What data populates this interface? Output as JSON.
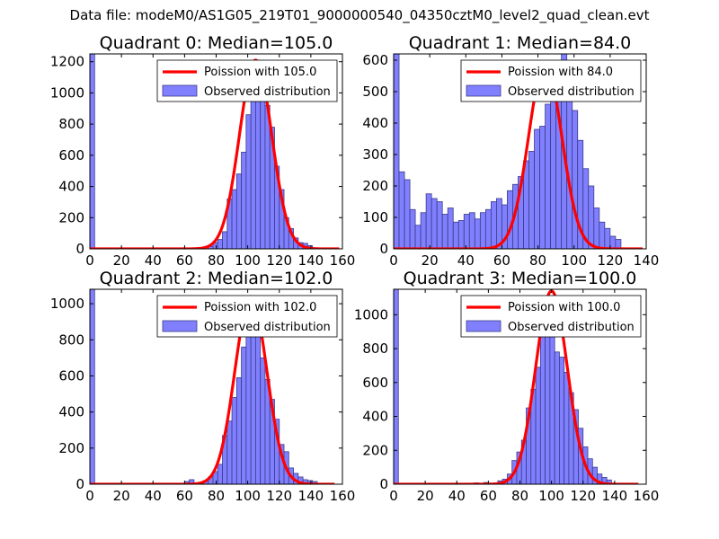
{
  "figure": {
    "suptitle": "Data file: modeM0/AS1G05_219T01_9000000540_04350cztM0_level2_quad_clean.evt"
  },
  "colors": {
    "bar_fill": "#8080ff",
    "bar_edge": "#3a3a8a",
    "curve": "#ff0000"
  },
  "chart_data": [
    {
      "type": "bar",
      "title": "Quadrant 0: Median=105.0",
      "xlim": [
        0,
        160
      ],
      "ylim": [
        0,
        1250
      ],
      "xticks": [
        0,
        20,
        40,
        60,
        80,
        100,
        120,
        140,
        160
      ],
      "yticks": [
        0,
        200,
        400,
        600,
        800,
        1000,
        1200
      ],
      "legend": {
        "placement": "top-right",
        "curve_label": "Poission with 105.0",
        "bar_label": "Observed distribution"
      },
      "bin_width": 3,
      "bins": [
        {
          "x": 0,
          "h": 1250
        },
        {
          "x": 75,
          "h": 15
        },
        {
          "x": 78,
          "h": 40
        },
        {
          "x": 81,
          "h": 60
        },
        {
          "x": 84,
          "h": 110
        },
        {
          "x": 87,
          "h": 320
        },
        {
          "x": 90,
          "h": 380
        },
        {
          "x": 93,
          "h": 480
        },
        {
          "x": 96,
          "h": 620
        },
        {
          "x": 99,
          "h": 860
        },
        {
          "x": 102,
          "h": 1140
        },
        {
          "x": 105,
          "h": 1210
        },
        {
          "x": 108,
          "h": 1060
        },
        {
          "x": 111,
          "h": 920
        },
        {
          "x": 114,
          "h": 780
        },
        {
          "x": 117,
          "h": 530
        },
        {
          "x": 120,
          "h": 380
        },
        {
          "x": 123,
          "h": 200
        },
        {
          "x": 126,
          "h": 130
        },
        {
          "x": 129,
          "h": 70
        },
        {
          "x": 132,
          "h": 40
        },
        {
          "x": 135,
          "h": 35
        },
        {
          "x": 138,
          "h": 20
        }
      ],
      "poisson": {
        "mean": 105.0,
        "peak": 1210,
        "sigma": 10.2,
        "x_range": [
          0,
          158
        ]
      }
    },
    {
      "type": "bar",
      "title": "Quadrant 1: Median=84.0",
      "xlim": [
        0,
        140
      ],
      "ylim": [
        0,
        620
      ],
      "xticks": [
        0,
        20,
        40,
        60,
        80,
        100,
        120,
        140
      ],
      "yticks": [
        0,
        100,
        200,
        300,
        400,
        500,
        600
      ],
      "legend": {
        "placement": "top-right",
        "curve_label": "Poission with 84.0",
        "bar_label": "Observed distribution"
      },
      "bin_width": 3,
      "bins": [
        {
          "x": 0,
          "h": 620
        },
        {
          "x": 3,
          "h": 245
        },
        {
          "x": 6,
          "h": 220
        },
        {
          "x": 9,
          "h": 125
        },
        {
          "x": 12,
          "h": 75
        },
        {
          "x": 15,
          "h": 115
        },
        {
          "x": 18,
          "h": 175
        },
        {
          "x": 21,
          "h": 160
        },
        {
          "x": 24,
          "h": 150
        },
        {
          "x": 27,
          "h": 110
        },
        {
          "x": 30,
          "h": 130
        },
        {
          "x": 33,
          "h": 85
        },
        {
          "x": 36,
          "h": 90
        },
        {
          "x": 39,
          "h": 110
        },
        {
          "x": 42,
          "h": 115
        },
        {
          "x": 45,
          "h": 95
        },
        {
          "x": 48,
          "h": 115
        },
        {
          "x": 51,
          "h": 125
        },
        {
          "x": 54,
          "h": 150
        },
        {
          "x": 57,
          "h": 160
        },
        {
          "x": 60,
          "h": 140
        },
        {
          "x": 63,
          "h": 185
        },
        {
          "x": 66,
          "h": 205
        },
        {
          "x": 69,
          "h": 230
        },
        {
          "x": 72,
          "h": 280
        },
        {
          "x": 75,
          "h": 310
        },
        {
          "x": 78,
          "h": 380
        },
        {
          "x": 81,
          "h": 390
        },
        {
          "x": 84,
          "h": 460
        },
        {
          "x": 87,
          "h": 540
        },
        {
          "x": 90,
          "h": 570
        },
        {
          "x": 93,
          "h": 640
        },
        {
          "x": 96,
          "h": 560
        },
        {
          "x": 99,
          "h": 440
        },
        {
          "x": 102,
          "h": 345
        },
        {
          "x": 105,
          "h": 255
        },
        {
          "x": 108,
          "h": 200
        },
        {
          "x": 111,
          "h": 130
        },
        {
          "x": 114,
          "h": 85
        },
        {
          "x": 117,
          "h": 65
        },
        {
          "x": 120,
          "h": 40
        },
        {
          "x": 123,
          "h": 30
        }
      ],
      "poisson": {
        "mean": 84.0,
        "peak": 590,
        "sigma": 9.2,
        "x_range": [
          0,
          138
        ]
      }
    },
    {
      "type": "bar",
      "title": "Quadrant 2: Median=102.0",
      "xlim": [
        0,
        160
      ],
      "ylim": [
        0,
        1080
      ],
      "xticks": [
        0,
        20,
        40,
        60,
        80,
        100,
        120,
        140,
        160
      ],
      "yticks": [
        0,
        200,
        400,
        600,
        800,
        1000
      ],
      "legend": {
        "placement": "top-right",
        "curve_label": "Poission with 102.0",
        "bar_label": "Observed distribution"
      },
      "bin_width": 3,
      "bins": [
        {
          "x": 0,
          "h": 1080
        },
        {
          "x": 60,
          "h": 15
        },
        {
          "x": 63,
          "h": 25
        },
        {
          "x": 72,
          "h": 20
        },
        {
          "x": 75,
          "h": 40
        },
        {
          "x": 78,
          "h": 70
        },
        {
          "x": 81,
          "h": 110
        },
        {
          "x": 84,
          "h": 270
        },
        {
          "x": 87,
          "h": 350
        },
        {
          "x": 90,
          "h": 480
        },
        {
          "x": 93,
          "h": 590
        },
        {
          "x": 96,
          "h": 760
        },
        {
          "x": 99,
          "h": 1000
        },
        {
          "x": 102,
          "h": 930
        },
        {
          "x": 105,
          "h": 850
        },
        {
          "x": 108,
          "h": 700
        },
        {
          "x": 111,
          "h": 580
        },
        {
          "x": 114,
          "h": 470
        },
        {
          "x": 117,
          "h": 360
        },
        {
          "x": 120,
          "h": 220
        },
        {
          "x": 123,
          "h": 180
        },
        {
          "x": 126,
          "h": 90
        },
        {
          "x": 129,
          "h": 60
        },
        {
          "x": 132,
          "h": 40
        },
        {
          "x": 135,
          "h": 25
        },
        {
          "x": 138,
          "h": 20
        },
        {
          "x": 141,
          "h": 15
        }
      ],
      "poisson": {
        "mean": 102.0,
        "peak": 1040,
        "sigma": 10.1,
        "x_range": [
          0,
          155
        ]
      }
    },
    {
      "type": "bar",
      "title": "Quadrant 3: Median=100.0",
      "xlim": [
        0,
        160
      ],
      "ylim": [
        0,
        1150
      ],
      "xticks": [
        0,
        20,
        40,
        60,
        80,
        100,
        120,
        140,
        160
      ],
      "yticks": [
        0,
        200,
        400,
        600,
        800,
        1000
      ],
      "legend": {
        "placement": "top-right",
        "curve_label": "Poission with 100.0",
        "bar_label": "Observed distribution"
      },
      "bin_width": 3,
      "bins": [
        {
          "x": 0,
          "h": 1150
        },
        {
          "x": 51,
          "h": 8
        },
        {
          "x": 57,
          "h": 10
        },
        {
          "x": 66,
          "h": 20
        },
        {
          "x": 69,
          "h": 30
        },
        {
          "x": 72,
          "h": 60
        },
        {
          "x": 75,
          "h": 140
        },
        {
          "x": 78,
          "h": 190
        },
        {
          "x": 81,
          "h": 260
        },
        {
          "x": 84,
          "h": 450
        },
        {
          "x": 87,
          "h": 560
        },
        {
          "x": 90,
          "h": 690
        },
        {
          "x": 93,
          "h": 880
        },
        {
          "x": 96,
          "h": 1100
        },
        {
          "x": 99,
          "h": 1000
        },
        {
          "x": 102,
          "h": 780
        },
        {
          "x": 105,
          "h": 750
        },
        {
          "x": 108,
          "h": 660
        },
        {
          "x": 111,
          "h": 540
        },
        {
          "x": 114,
          "h": 440
        },
        {
          "x": 117,
          "h": 330
        },
        {
          "x": 120,
          "h": 220
        },
        {
          "x": 123,
          "h": 150
        },
        {
          "x": 126,
          "h": 100
        },
        {
          "x": 129,
          "h": 60
        },
        {
          "x": 132,
          "h": 40
        },
        {
          "x": 135,
          "h": 25
        }
      ],
      "poisson": {
        "mean": 100.0,
        "peak": 1140,
        "sigma": 10.0,
        "x_range": [
          0,
          155
        ]
      }
    }
  ]
}
